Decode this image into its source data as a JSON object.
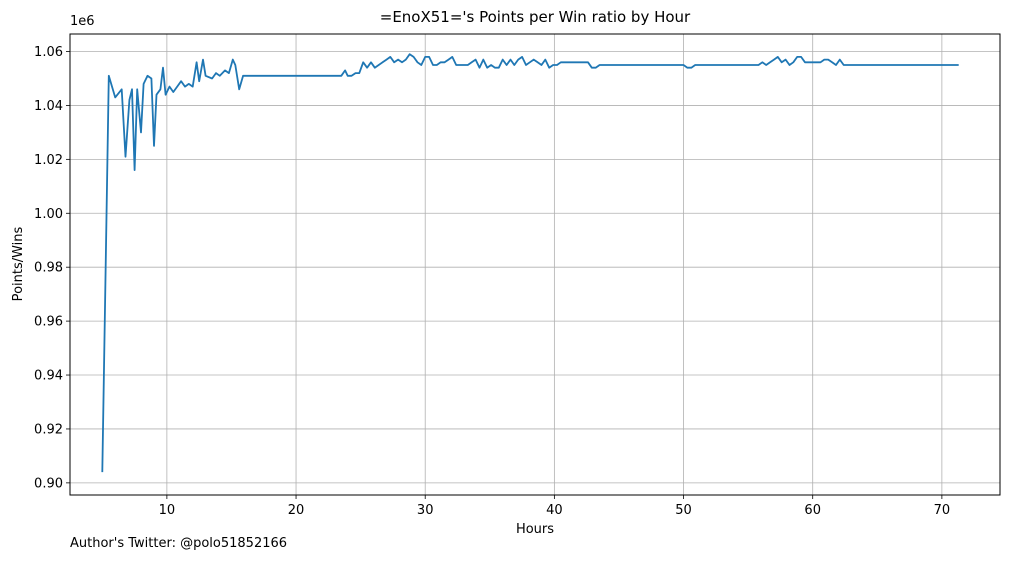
{
  "footer_note": "Author's Twitter: @polo51852166",
  "chart_data": {
    "type": "line",
    "title": "=EnoX51='s Points per Win ratio by Hour",
    "xlabel": "Hours",
    "ylabel": "Points/Wins",
    "y_offset_label": "1e6",
    "y_multiplier": 1000000,
    "xlim": [
      2.5,
      74.5
    ],
    "ylim": [
      0.8955,
      1.0665
    ],
    "x_ticks": [
      10,
      20,
      30,
      40,
      50,
      60,
      70
    ],
    "x_tick_labels": [
      "10",
      "20",
      "30",
      "40",
      "50",
      "60",
      "70"
    ],
    "y_ticks": [
      0.9,
      0.92,
      0.94,
      0.96,
      0.98,
      1.0,
      1.02,
      1.04,
      1.06
    ],
    "y_tick_labels": [
      "0.90",
      "0.92",
      "0.94",
      "0.96",
      "0.98",
      "1.00",
      "1.02",
      "1.04",
      "1.06"
    ],
    "grid": true,
    "legend": "none",
    "series_color": "#1f77b4",
    "series": [
      {
        "x": [
          5.0,
          5.5,
          6.0,
          6.5,
          6.8,
          7.1,
          7.3,
          7.5,
          7.7,
          8.0,
          8.2,
          8.5,
          8.8,
          9.0,
          9.2,
          9.5,
          9.7,
          9.9,
          10.2,
          10.5,
          10.8,
          11.1,
          11.4,
          11.7,
          12.0,
          12.3,
          12.5,
          12.8,
          13.0,
          13.5,
          13.8,
          14.1,
          14.5,
          14.8,
          15.1,
          15.3,
          15.6,
          15.9,
          23.5,
          23.8,
          24.0,
          24.3,
          24.6,
          24.9,
          25.2,
          25.5,
          25.8,
          26.1,
          26.4,
          26.7,
          27.0,
          27.3,
          27.6,
          27.9,
          28.2,
          28.5,
          28.8,
          29.1,
          29.4,
          29.7,
          30.0,
          30.3,
          30.6,
          30.9,
          31.2,
          31.5,
          31.8,
          32.1,
          32.4,
          32.7,
          33.0,
          33.3,
          33.6,
          33.9,
          34.2,
          34.5,
          34.8,
          35.1,
          35.4,
          35.7,
          36.0,
          36.3,
          36.6,
          36.9,
          37.2,
          37.5,
          37.8,
          38.1,
          38.4,
          38.7,
          39.0,
          39.3,
          39.6,
          39.9,
          40.2,
          40.5,
          40.8,
          41.1,
          41.4,
          41.7,
          42.0,
          42.3,
          42.6,
          42.9,
          43.2,
          43.5,
          43.8,
          44.1,
          50.0,
          50.3,
          50.6,
          50.9,
          51.2,
          55.5,
          55.8,
          56.1,
          56.4,
          56.7,
          57.0,
          57.3,
          57.6,
          57.9,
          58.2,
          58.5,
          58.8,
          59.1,
          59.4,
          59.7,
          60.0,
          60.3,
          60.6,
          60.9,
          61.2,
          61.5,
          61.8,
          62.1,
          62.4,
          62.7,
          71.3
        ],
        "y": [
          0.904,
          1.051,
          1.043,
          1.046,
          1.021,
          1.042,
          1.046,
          1.016,
          1.046,
          1.03,
          1.048,
          1.051,
          1.05,
          1.025,
          1.044,
          1.046,
          1.054,
          1.044,
          1.047,
          1.045,
          1.047,
          1.049,
          1.047,
          1.048,
          1.047,
          1.056,
          1.049,
          1.057,
          1.051,
          1.05,
          1.052,
          1.051,
          1.053,
          1.052,
          1.057,
          1.055,
          1.046,
          1.051,
          1.051,
          1.053,
          1.051,
          1.051,
          1.052,
          1.052,
          1.056,
          1.054,
          1.056,
          1.054,
          1.055,
          1.056,
          1.057,
          1.058,
          1.056,
          1.057,
          1.056,
          1.057,
          1.059,
          1.058,
          1.056,
          1.055,
          1.058,
          1.058,
          1.055,
          1.055,
          1.056,
          1.056,
          1.057,
          1.058,
          1.055,
          1.055,
          1.055,
          1.055,
          1.056,
          1.057,
          1.054,
          1.057,
          1.054,
          1.055,
          1.054,
          1.054,
          1.057,
          1.055,
          1.057,
          1.055,
          1.057,
          1.058,
          1.055,
          1.056,
          1.057,
          1.056,
          1.055,
          1.057,
          1.054,
          1.055,
          1.055,
          1.056,
          1.056,
          1.056,
          1.056,
          1.056,
          1.056,
          1.056,
          1.056,
          1.054,
          1.054,
          1.055,
          1.055,
          1.055,
          1.055,
          1.054,
          1.054,
          1.055,
          1.055,
          1.055,
          1.055,
          1.056,
          1.055,
          1.056,
          1.057,
          1.058,
          1.056,
          1.057,
          1.055,
          1.056,
          1.058,
          1.058,
          1.056,
          1.056,
          1.056,
          1.056,
          1.056,
          1.057,
          1.057,
          1.056,
          1.055,
          1.057,
          1.055,
          1.055,
          1.055
        ]
      }
    ]
  }
}
